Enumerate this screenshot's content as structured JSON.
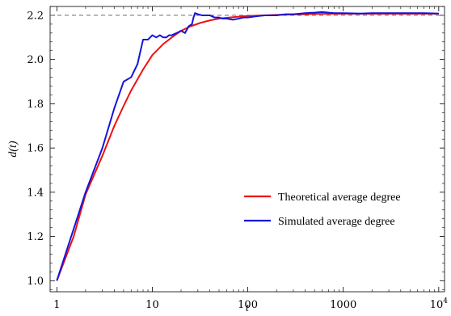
{
  "chart_data": {
    "type": "line",
    "title": "",
    "xlabel": "t",
    "ylabel": "d(t)",
    "x_scale": "log",
    "xlim": [
      0.85,
      11500
    ],
    "ylim": [
      0.95,
      2.24
    ],
    "x_ticks": [
      {
        "value": 1,
        "label": "1"
      },
      {
        "value": 10,
        "label": "10"
      },
      {
        "value": 100,
        "label": "100"
      },
      {
        "value": 1000,
        "label": "1000"
      },
      {
        "value": 10000,
        "label": "10",
        "exponent": "4"
      }
    ],
    "y_ticks": [
      {
        "value": 1.0,
        "label": "1.0"
      },
      {
        "value": 1.2,
        "label": "1.2"
      },
      {
        "value": 1.4,
        "label": "1.4"
      },
      {
        "value": 1.6,
        "label": "1.6"
      },
      {
        "value": 1.8,
        "label": "1.8"
      },
      {
        "value": 2.0,
        "label": "2.0"
      },
      {
        "value": 2.2,
        "label": "2.2"
      }
    ],
    "reference_line": {
      "y": 2.2,
      "style": "dashed",
      "color": "#555555"
    },
    "legend": {
      "position": "bottom-right"
    },
    "series": [
      {
        "name": "Theoretical average degree",
        "color": "#ee1111",
        "x": [
          1,
          1.5,
          2,
          3,
          4,
          5,
          6,
          8,
          10,
          13,
          16,
          20,
          25,
          32,
          40,
          50,
          65,
          80,
          100,
          150,
          200,
          300,
          500,
          1000,
          3000,
          10000
        ],
        "y": [
          1.0,
          1.2,
          1.39,
          1.565,
          1.7,
          1.79,
          1.86,
          1.955,
          2.02,
          2.07,
          2.1,
          2.13,
          2.15,
          2.166,
          2.177,
          2.185,
          2.19,
          2.194,
          2.197,
          2.2,
          2.202,
          2.204,
          2.206,
          2.207,
          2.207,
          2.207
        ]
      },
      {
        "name": "Simulated average degree",
        "color": "#1414dd",
        "x": [
          1,
          2,
          3,
          4,
          5,
          6,
          7,
          8,
          9,
          10,
          11,
          12,
          13,
          14,
          15,
          16,
          18,
          20,
          22,
          24,
          26,
          27,
          28,
          30,
          33,
          36,
          40,
          45,
          50,
          55,
          60,
          70,
          80,
          90,
          100,
          120,
          150,
          200,
          250,
          300,
          400,
          500,
          600,
          700,
          800,
          1000,
          1500,
          2000,
          3000,
          5000,
          7000,
          10000
        ],
        "y": [
          1.0,
          1.4,
          1.6,
          1.78,
          1.9,
          1.92,
          1.98,
          2.09,
          2.09,
          2.11,
          2.1,
          2.11,
          2.1,
          2.1,
          2.11,
          2.11,
          2.12,
          2.13,
          2.12,
          2.15,
          2.16,
          2.19,
          2.21,
          2.205,
          2.2,
          2.2,
          2.2,
          2.19,
          2.19,
          2.185,
          2.185,
          2.18,
          2.185,
          2.19,
          2.19,
          2.195,
          2.2,
          2.2,
          2.205,
          2.205,
          2.21,
          2.212,
          2.215,
          2.212,
          2.21,
          2.21,
          2.208,
          2.21,
          2.21,
          2.21,
          2.21,
          2.208
        ]
      }
    ]
  }
}
